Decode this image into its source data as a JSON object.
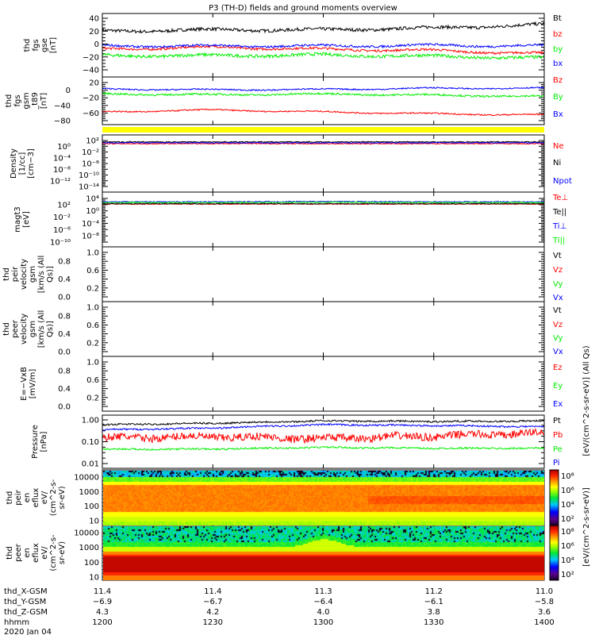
{
  "title": "P3 (TH-D) fields and ground moments overview",
  "colors": {
    "black": "#000000",
    "red": "#ff0000",
    "green": "#00ee00",
    "blue": "#0000ff",
    "yellow": "#ffff00"
  },
  "chart_data": [
    {
      "type": "line",
      "id": "fgs_gse",
      "ylabel": [
        "thd",
        "fgs",
        "gse",
        "[nT]"
      ],
      "yticks": [
        "40",
        "20",
        "0",
        "−20",
        "−40"
      ],
      "ylim": [
        -40,
        40
      ],
      "x": [
        "1200",
        "1230",
        "1300",
        "1330",
        "1400"
      ],
      "series": [
        {
          "name": "Bt",
          "color": "#000000",
          "values": [
            20,
            22,
            22,
            25,
            30
          ]
        },
        {
          "name": "bz",
          "color": "#ff0000",
          "values": [
            -8,
            -5,
            -8,
            -10,
            -15
          ]
        },
        {
          "name": "by",
          "color": "#00ee00",
          "values": [
            -18,
            -18,
            -17,
            -19,
            -22
          ]
        },
        {
          "name": "bx",
          "color": "#0000ff",
          "values": [
            -3,
            -3,
            -3,
            -2,
            -3
          ]
        }
      ]
    },
    {
      "type": "line",
      "id": "fgs_gsm",
      "ylabel": [
        "thd",
        "fgs",
        "gsm",
        "_t89",
        "[nT]"
      ],
      "yticks": [
        "20",
        "0",
        "−20",
        "−40",
        "−60",
        "−80"
      ],
      "ylim": [
        -80,
        20
      ],
      "x": [
        "1200",
        "1230",
        "1300",
        "1330",
        "1400"
      ],
      "series": [
        {
          "name": "Bz",
          "color": "#ff0000",
          "values": [
            -57,
            -52,
            -57,
            -62,
            -65
          ]
        },
        {
          "name": "By",
          "color": "#00ee00",
          "values": [
            -10,
            -12,
            -10,
            -13,
            -17
          ]
        },
        {
          "name": "Bx",
          "color": "#0000ff",
          "values": [
            3,
            1,
            2,
            5,
            5
          ]
        }
      ]
    },
    {
      "type": "line",
      "id": "density",
      "ylabel": [
        "Density",
        "[1/cc]",
        "[cm−3]"
      ],
      "yticks": [
        "10²",
        "10⁰",
        "10⁻²",
        "10⁻⁴",
        "10⁻⁶",
        "10⁻⁸",
        "10⁻¹⁰",
        "10⁻¹²",
        "10⁻¹⁴"
      ],
      "ylim_log10": [
        -14,
        2
      ],
      "series": [
        {
          "name": "Ne",
          "color": "#ff0000",
          "values_log10": [
            0.9,
            0.9,
            0.9,
            0.9,
            0.9
          ]
        },
        {
          "name": "Ni",
          "color": "#000000",
          "values_log10": [
            1.5,
            1.5,
            1.5,
            1.5,
            1.5
          ]
        },
        {
          "name": "Npot",
          "color": "#0000ff",
          "values_log10": [
            1.2,
            1.2,
            1.2,
            1.2,
            1.2
          ]
        }
      ]
    },
    {
      "type": "line",
      "id": "temperature",
      "ylabel": [
        "magt3",
        "[eV]"
      ],
      "yticks": [
        "10⁴",
        "10²",
        "10⁰",
        "10⁻²",
        "10⁻⁴",
        "10⁻⁶",
        "10⁻⁸",
        "10⁻¹⁰"
      ],
      "ylim_log10": [
        -10,
        4
      ],
      "series": [
        {
          "name": "Te⊥",
          "color": "#ff0000",
          "values_log10": [
            2.2,
            2.2,
            2.2,
            2.2,
            2.2
          ]
        },
        {
          "name": "Te||",
          "color": "#000000",
          "values_log10": [
            2.3,
            2.3,
            2.3,
            2.3,
            2.3
          ]
        },
        {
          "name": "Ti⊥",
          "color": "#0000ff",
          "values_log10": [
            2.9,
            2.9,
            3.0,
            2.9,
            2.9
          ]
        },
        {
          "name": "Ti||",
          "color": "#00ee00",
          "values_log10": [
            2.7,
            2.7,
            2.8,
            2.7,
            2.7
          ]
        }
      ]
    },
    {
      "type": "line",
      "id": "peir_velocity",
      "ylabel": [
        "thd",
        "peir",
        "velocity",
        "gsm",
        "[km/s (All Qs)]"
      ],
      "yticks": [
        "1.0",
        "0.8",
        "0.6",
        "0.4",
        "0.2",
        "0.0"
      ],
      "ylim": [
        0,
        1
      ],
      "series": [
        {
          "name": "Vt",
          "color": "#000000"
        },
        {
          "name": "Vz",
          "color": "#ff0000"
        },
        {
          "name": "Vy",
          "color": "#00ee00"
        },
        {
          "name": "Vx",
          "color": "#0000ff"
        }
      ]
    },
    {
      "type": "line",
      "id": "peer_velocity",
      "ylabel": [
        "thd",
        "peer",
        "velocity",
        "gsm",
        "[km/s (All Qs)]"
      ],
      "yticks": [
        "1.0",
        "0.8",
        "0.6",
        "0.4",
        "0.2",
        "0.0"
      ],
      "ylim": [
        0,
        1
      ],
      "series": [
        {
          "name": "Vt",
          "color": "#000000"
        },
        {
          "name": "Vz",
          "color": "#ff0000"
        },
        {
          "name": "Vy",
          "color": "#00ee00"
        },
        {
          "name": "Vx",
          "color": "#0000ff"
        }
      ]
    },
    {
      "type": "line",
      "id": "efield",
      "ylabel": [
        "E=−VxB",
        "[mV/m]"
      ],
      "yticks": [
        "1.0",
        "0.8",
        "0.6",
        "0.4",
        "0.2",
        "0.0"
      ],
      "ylim": [
        0,
        1
      ],
      "series": [
        {
          "name": "Ez",
          "color": "#ff0000"
        },
        {
          "name": "Ey",
          "color": "#00ee00"
        },
        {
          "name": "Ex",
          "color": "#0000ff"
        }
      ]
    },
    {
      "type": "line",
      "id": "pressure",
      "ylabel": [
        "Pressure",
        "[nPa]"
      ],
      "yticks": [
        "1.00",
        "0.10",
        "0.01"
      ],
      "ylim": [
        0.01,
        1
      ],
      "x": [
        "1200",
        "1230",
        "1300",
        "1330",
        "1400"
      ],
      "series": [
        {
          "name": "Pt",
          "color": "#000000",
          "values": [
            0.6,
            0.7,
            0.9,
            0.85,
            0.88
          ]
        },
        {
          "name": "Pb",
          "color": "#ff0000",
          "values": [
            0.15,
            0.17,
            0.14,
            0.18,
            0.25
          ]
        },
        {
          "name": "Pe",
          "color": "#00ee00",
          "values": [
            0.045,
            0.046,
            0.055,
            0.05,
            0.05
          ]
        },
        {
          "name": "Pi",
          "color": "#0000ff",
          "values": [
            0.35,
            0.42,
            0.6,
            0.55,
            0.48
          ]
        }
      ]
    },
    {
      "type": "heatmap",
      "id": "peir_eflux",
      "ylabel": [
        "thd",
        "peir",
        "en",
        "eflux",
        "eV/",
        "(cm^2-s-",
        "sr-eV)"
      ],
      "yticks": [
        "10000",
        "1000",
        "100",
        "10"
      ],
      "ylim": [
        7,
        20000
      ]
    },
    {
      "type": "heatmap",
      "id": "peer_eflux",
      "ylabel": [
        "thd",
        "peer",
        "en",
        "eflux",
        "eV/",
        "(cm^2-s-",
        "sr-eV)"
      ],
      "yticks": [
        "10000",
        "1000",
        "100",
        "10"
      ],
      "ylim": [
        7,
        20000
      ]
    }
  ],
  "colorbar": {
    "ticks": [
      "10⁸",
      "10⁶",
      "10⁴",
      "10²"
    ],
    "label": "[eV/(cm^2-s-sr-eV)]",
    "label2": "[eV/(cm^2-s-sr-eV)] (All Qs)"
  },
  "xaxis": {
    "rows": [
      {
        "label": "thd_X-GSM",
        "values": [
          "11.4",
          "11.4",
          "11.3",
          "11.2",
          "11.0"
        ]
      },
      {
        "label": "thd_Y-GSM",
        "values": [
          "−6.9",
          "−6.7",
          "−6.4",
          "−6.1",
          "−5.8"
        ]
      },
      {
        "label": "thd_Z-GSM",
        "values": [
          "4.3",
          "4.2",
          "4.0",
          "3.8",
          "3.6"
        ]
      },
      {
        "label": "hhmm",
        "values": [
          "1200",
          "1230",
          "1300",
          "1330",
          "1400"
        ]
      }
    ],
    "date": "2020 Jan 04"
  }
}
